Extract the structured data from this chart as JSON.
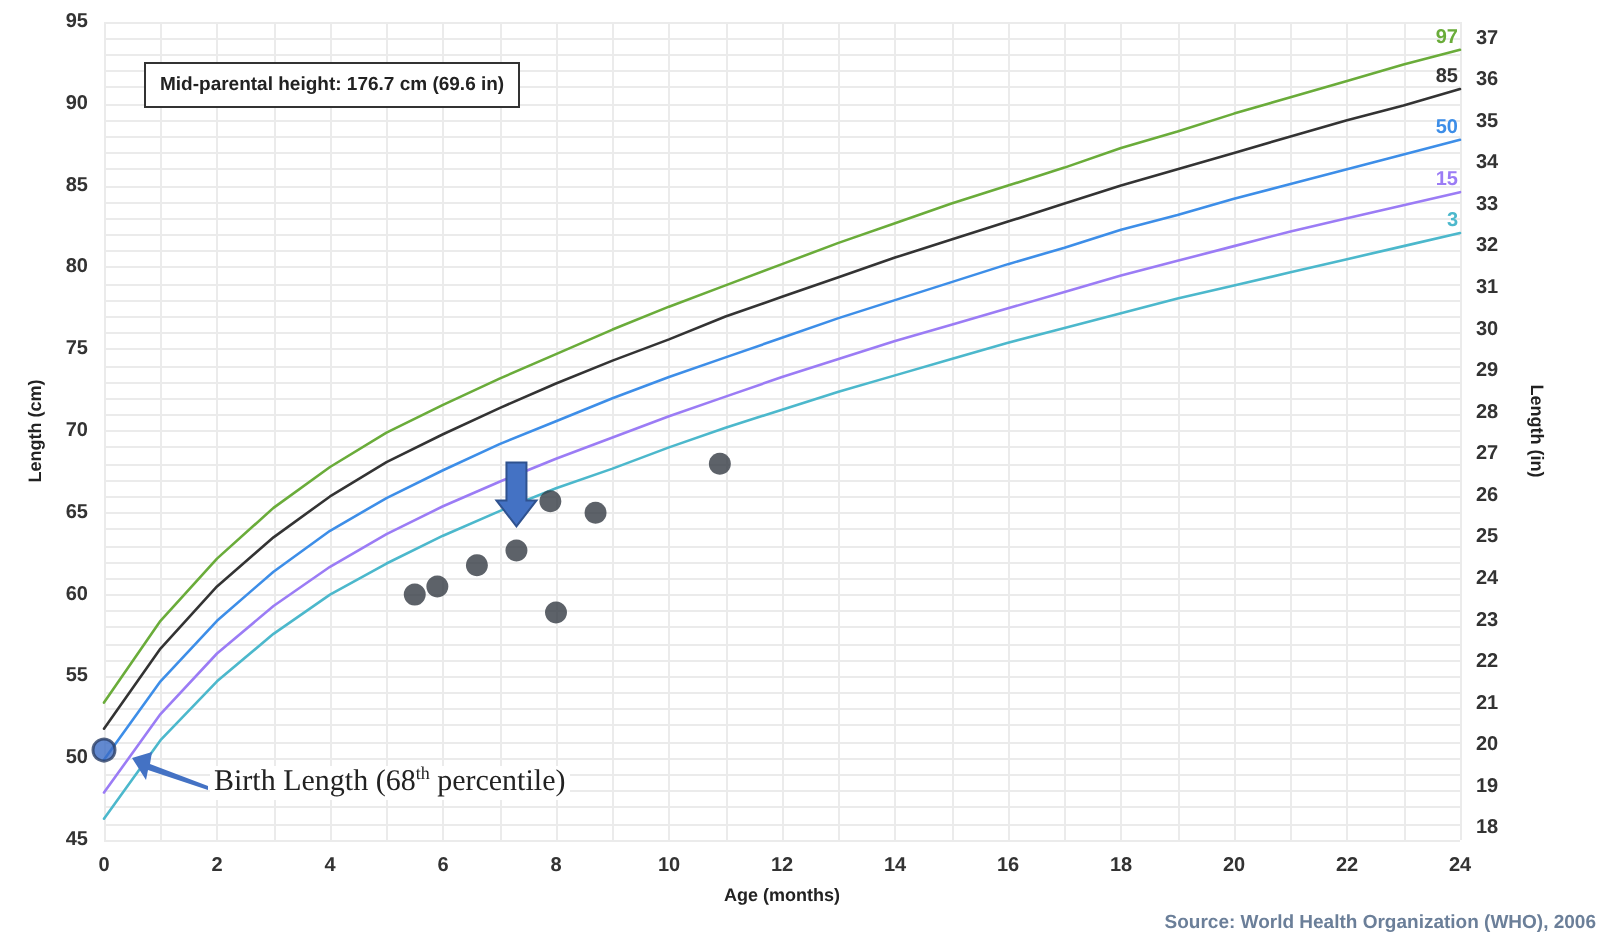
{
  "chart_data": {
    "type": "line",
    "xlabel": "Age (months)",
    "ylabel": "Length (cm)",
    "y2label": "Length (in)",
    "xlim": [
      0,
      24
    ],
    "xticks": [
      0,
      {
        "value": 1,
        "label": null
      },
      2,
      {
        "value": 3,
        "label": null
      },
      4,
      {
        "value": 5,
        "label": null
      },
      6,
      {
        "value": 7,
        "label": null
      },
      8,
      {
        "value": 9,
        "label": null
      },
      10,
      {
        "value": 11,
        "label": null
      },
      12,
      {
        "value": 13,
        "label": null
      },
      14,
      {
        "value": 15,
        "label": null
      },
      16,
      {
        "value": 17,
        "label": null
      },
      18,
      {
        "value": 19,
        "label": null
      },
      20,
      {
        "value": 21,
        "label": null
      },
      22,
      {
        "value": 23,
        "label": null
      },
      24
    ],
    "ylim": [
      45,
      95
    ],
    "yticks": [
      45,
      {
        "value": 46,
        "label": null
      },
      {
        "value": 47,
        "label": null
      },
      {
        "value": 48,
        "label": null
      },
      {
        "value": 49,
        "label": null
      },
      50,
      {
        "value": 51,
        "label": null
      },
      {
        "value": 52,
        "label": null
      },
      {
        "value": 53,
        "label": null
      },
      {
        "value": 54,
        "label": null
      },
      55,
      {
        "value": 56,
        "label": null
      },
      {
        "value": 57,
        "label": null
      },
      {
        "value": 58,
        "label": null
      },
      {
        "value": 59,
        "label": null
      },
      60,
      {
        "value": 61,
        "label": null
      },
      {
        "value": 62,
        "label": null
      },
      {
        "value": 63,
        "label": null
      },
      {
        "value": 64,
        "label": null
      },
      65,
      {
        "value": 66,
        "label": null
      },
      {
        "value": 67,
        "label": null
      },
      {
        "value": 68,
        "label": null
      },
      {
        "value": 69,
        "label": null
      },
      70,
      {
        "value": 71,
        "label": null
      },
      {
        "value": 72,
        "label": null
      },
      {
        "value": 73,
        "label": null
      },
      {
        "value": 74,
        "label": null
      },
      75,
      {
        "value": 76,
        "label": null
      },
      {
        "value": 77,
        "label": null
      },
      {
        "value": 78,
        "label": null
      },
      {
        "value": 79,
        "label": null
      },
      80,
      {
        "value": 81,
        "label": null
      },
      {
        "value": 82,
        "label": null
      },
      {
        "value": 83,
        "label": null
      },
      {
        "value": 84,
        "label": null
      },
      85,
      {
        "value": 86,
        "label": null
      },
      {
        "value": 87,
        "label": null
      },
      {
        "value": 88,
        "label": null
      },
      {
        "value": 89,
        "label": null
      },
      90,
      {
        "value": 91,
        "label": null
      },
      {
        "value": 92,
        "label": null
      },
      {
        "value": 93,
        "label": null
      },
      {
        "value": 94,
        "label": null
      },
      95
    ],
    "y2lim": [
      17.72,
      37.4
    ],
    "y2ticks": [
      18,
      19,
      20,
      21,
      22,
      23,
      24,
      25,
      26,
      27,
      28,
      29,
      30,
      31,
      32,
      33,
      34,
      35,
      36,
      37
    ],
    "grid": true,
    "marker": "none",
    "line_style": "solid",
    "series": [
      {
        "name": "97",
        "color": "#6aac3a",
        "x": [
          0,
          1,
          2,
          3,
          4,
          5,
          6,
          7,
          8,
          9,
          10,
          11,
          12,
          13,
          14,
          15,
          16,
          17,
          18,
          19,
          20,
          21,
          22,
          23,
          24
        ],
        "values": [
          53.4,
          58.4,
          62.2,
          65.3,
          67.8,
          69.9,
          71.6,
          73.2,
          74.7,
          76.2,
          77.6,
          78.9,
          80.2,
          81.5,
          82.7,
          83.9,
          85.0,
          86.1,
          87.3,
          88.3,
          89.4,
          90.4,
          91.4,
          92.4,
          93.3
        ]
      },
      {
        "name": "85",
        "color": "#333333",
        "x": [
          0,
          1,
          2,
          3,
          4,
          5,
          6,
          7,
          8,
          9,
          10,
          11,
          12,
          13,
          14,
          15,
          16,
          17,
          18,
          19,
          20,
          21,
          22,
          23,
          24
        ],
        "values": [
          51.8,
          56.7,
          60.5,
          63.5,
          66.0,
          68.1,
          69.8,
          71.4,
          72.9,
          74.3,
          75.6,
          77.0,
          78.2,
          79.4,
          80.6,
          81.7,
          82.8,
          83.9,
          85.0,
          86.0,
          87.0,
          88.0,
          89.0,
          89.9,
          90.9
        ]
      },
      {
        "name": "50",
        "color": "#3d8ee8",
        "x": [
          0,
          1,
          2,
          3,
          4,
          5,
          6,
          7,
          8,
          9,
          10,
          11,
          12,
          13,
          14,
          15,
          16,
          17,
          18,
          19,
          20,
          21,
          22,
          23,
          24
        ],
        "values": [
          49.9,
          54.7,
          58.4,
          61.4,
          63.9,
          65.9,
          67.6,
          69.2,
          70.6,
          72.0,
          73.3,
          74.5,
          75.7,
          76.9,
          78.0,
          79.1,
          80.2,
          81.2,
          82.3,
          83.2,
          84.2,
          85.1,
          86.0,
          86.9,
          87.8
        ]
      },
      {
        "name": "15",
        "color": "#9b7cf5",
        "x": [
          0,
          1,
          2,
          3,
          4,
          5,
          6,
          7,
          8,
          9,
          10,
          11,
          12,
          13,
          14,
          15,
          16,
          17,
          18,
          19,
          20,
          21,
          22,
          23,
          24
        ],
        "values": [
          47.9,
          52.7,
          56.4,
          59.3,
          61.7,
          63.7,
          65.4,
          66.9,
          68.3,
          69.6,
          70.9,
          72.1,
          73.3,
          74.4,
          75.5,
          76.5,
          77.5,
          78.5,
          79.5,
          80.4,
          81.3,
          82.2,
          83.0,
          83.8,
          84.6
        ]
      },
      {
        "name": "3",
        "color": "#4cb8cc",
        "x": [
          0,
          1,
          2,
          3,
          4,
          5,
          6,
          7,
          8,
          9,
          10,
          11,
          12,
          13,
          14,
          15,
          16,
          17,
          18,
          19,
          20,
          21,
          22,
          23,
          24
        ],
        "values": [
          46.3,
          51.1,
          54.7,
          57.6,
          60.0,
          61.9,
          63.6,
          65.1,
          66.5,
          67.7,
          69.0,
          70.2,
          71.3,
          72.4,
          73.4,
          74.4,
          75.4,
          76.3,
          77.2,
          78.1,
          78.9,
          79.7,
          80.5,
          81.3,
          82.1
        ]
      },
      {
        "type": "scatter",
        "marker": "circle",
        "color": "#353b43",
        "x": [
          5.5,
          5.9,
          6.6,
          7.3,
          7.9,
          8.0,
          8.7,
          10.9
        ],
        "values": [
          60.0,
          60.5,
          61.8,
          62.7,
          65.7,
          58.9,
          65.0,
          68.0
        ]
      },
      {
        "type": "scatter",
        "marker": "circle",
        "color": "#3b6cc4",
        "x": [
          0
        ],
        "values": [
          50.5
        ]
      }
    ],
    "annotations": [
      "Mid-parental height: 176.7 cm (69.6 in)",
      "Birth Length (68$^{th}$ percentile)",
      "Source: World Health Organization (WHO), 2006"
    ]
  }
}
